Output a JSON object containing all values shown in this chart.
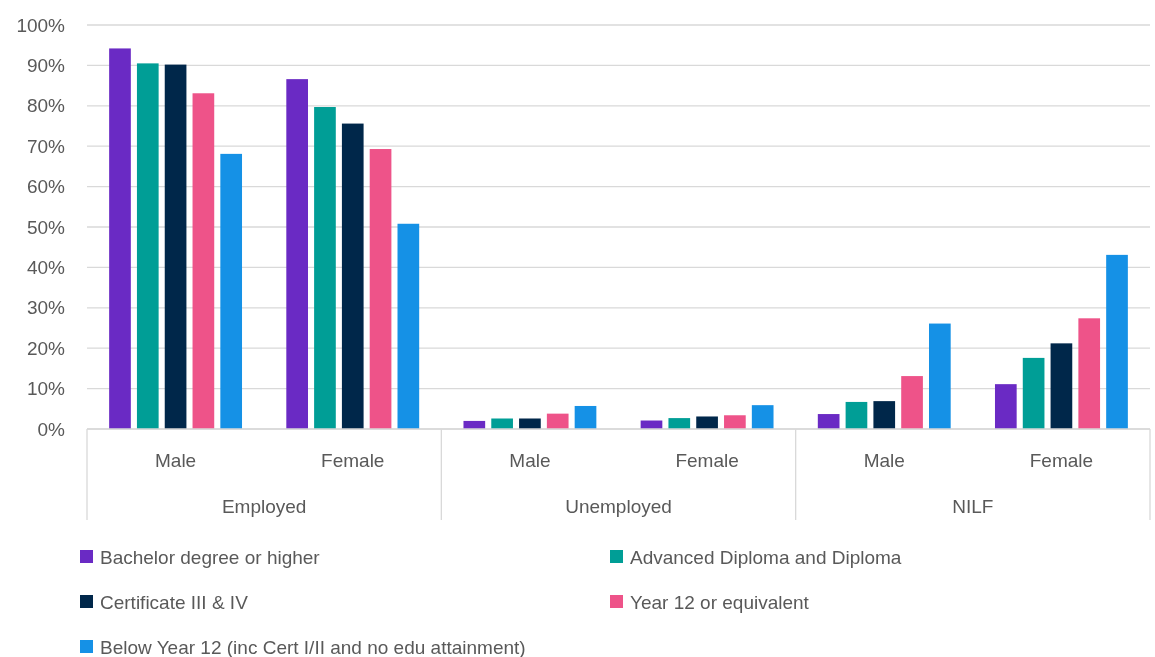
{
  "chart_data": {
    "type": "bar",
    "categories": [
      "Male",
      "Female",
      "Male",
      "Female",
      "Male",
      "Female"
    ],
    "annotations": [
      "Employed",
      "Unemployed",
      "NILF"
    ],
    "series": [
      {
        "name": "Bachelor degree or higher",
        "color": "#6a2ac4",
        "values": [
          94.2,
          86.6,
          2.0,
          2.1,
          3.7,
          11.1
        ]
      },
      {
        "name": "Advanced Diploma and Diploma",
        "color": "#009e96",
        "values": [
          90.5,
          79.7,
          2.6,
          2.7,
          6.7,
          17.6
        ]
      },
      {
        "name": "Certificate III & IV",
        "color": "#00274a",
        "values": [
          90.2,
          75.6,
          2.6,
          3.1,
          6.9,
          21.2
        ]
      },
      {
        "name": "Year 12 or equivalent",
        "color": "#ee5389",
        "values": [
          83.1,
          69.3,
          3.8,
          3.4,
          13.1,
          27.4
        ]
      },
      {
        "name": "Below Year 12 (inc Cert I/II and no edu attainment)",
        "color": "#1591e6",
        "values": [
          68.1,
          50.8,
          5.7,
          5.9,
          26.1,
          43.1
        ]
      }
    ],
    "ylim": [
      0,
      100
    ],
    "yticks": [
      {
        "value": 0,
        "label": "0%"
      },
      {
        "value": 10,
        "label": "10%"
      },
      {
        "value": 20,
        "label": "20%"
      },
      {
        "value": 30,
        "label": "30%"
      },
      {
        "value": 40,
        "label": "40%"
      },
      {
        "value": 50,
        "label": "50%"
      },
      {
        "value": 60,
        "label": "60%"
      },
      {
        "value": 70,
        "label": "70%"
      },
      {
        "value": 80,
        "label": "80%"
      },
      {
        "value": 90,
        "label": "90%"
      },
      {
        "value": 100,
        "label": "100%"
      }
    ],
    "grid": "y",
    "legend": "bottom"
  }
}
